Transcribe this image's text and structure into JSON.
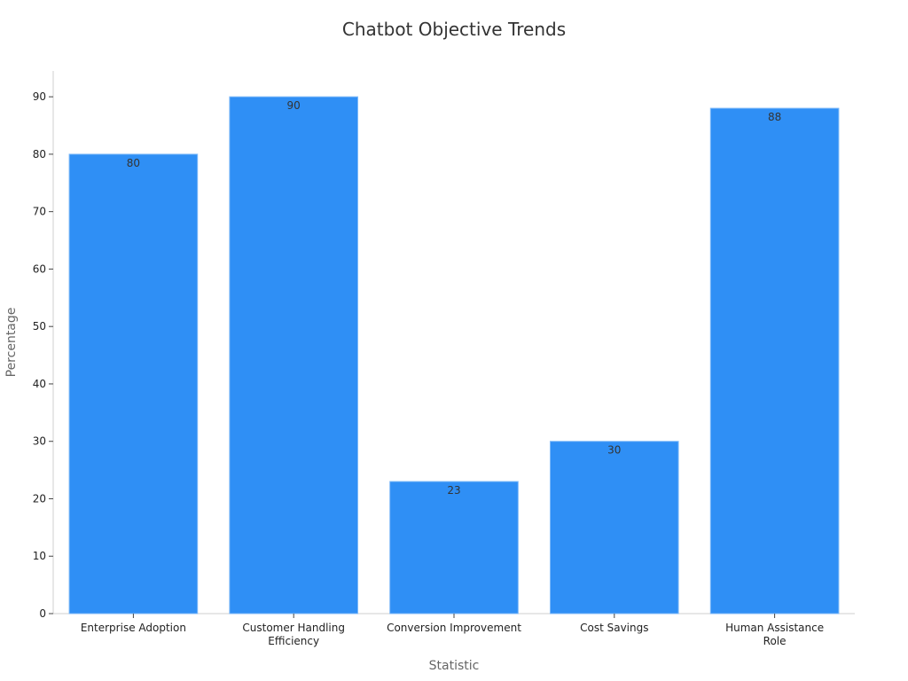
{
  "chart_data": {
    "type": "bar",
    "title": "Chatbot Objective Trends",
    "x_label": "Statistic",
    "y_label": "Percentage",
    "categories": [
      "Enterprise Adoption",
      "Customer Handling\nEfficiency",
      "Conversion Improvement",
      "Cost Savings",
      "Human Assistance\nRole"
    ],
    "values": [
      80,
      90,
      23,
      30,
      88
    ],
    "color": "#2f8ff5",
    "ylim": [
      0,
      94.5
    ],
    "yticks": [
      0,
      10,
      20,
      30,
      40,
      50,
      60,
      70,
      80,
      90
    ]
  }
}
